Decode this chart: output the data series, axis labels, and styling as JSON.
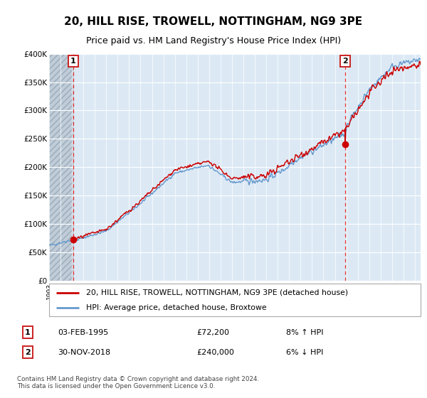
{
  "title": "20, HILL RISE, TROWELL, NOTTINGHAM, NG9 3PE",
  "subtitle": "Price paid vs. HM Land Registry's House Price Index (HPI)",
  "ylim": [
    0,
    400000
  ],
  "yticks": [
    0,
    50000,
    100000,
    150000,
    200000,
    250000,
    300000,
    350000,
    400000
  ],
  "ytick_labels": [
    "£0",
    "£50K",
    "£100K",
    "£150K",
    "£200K",
    "£250K",
    "£300K",
    "£350K",
    "£400K"
  ],
  "xlim_start": 1993.0,
  "xlim_end": 2025.5,
  "sale1_x": 1995.09,
  "sale1_y": 72200,
  "sale2_x": 2018.92,
  "sale2_y": 240000,
  "sale1_label": "03-FEB-1995",
  "sale1_price": "£72,200",
  "sale1_hpi": "8% ↑ HPI",
  "sale2_label": "30-NOV-2018",
  "sale2_price": "£240,000",
  "sale2_hpi": "6% ↓ HPI",
  "legend1": "20, HILL RISE, TROWELL, NOTTINGHAM, NG9 3PE (detached house)",
  "legend2": "HPI: Average price, detached house, Broxtowe",
  "footer": "Contains HM Land Registry data © Crown copyright and database right 2024.\nThis data is licensed under the Open Government Licence v3.0.",
  "chart_bg": "#dce9f5",
  "hatch_color": "#c0cdd8",
  "grid_color": "#ffffff",
  "red_line_color": "#cc0000",
  "blue_line_color": "#6699cc",
  "vline_color": "#ee3333",
  "title_fontsize": 11,
  "subtitle_fontsize": 9,
  "tick_fontsize": 7.5
}
